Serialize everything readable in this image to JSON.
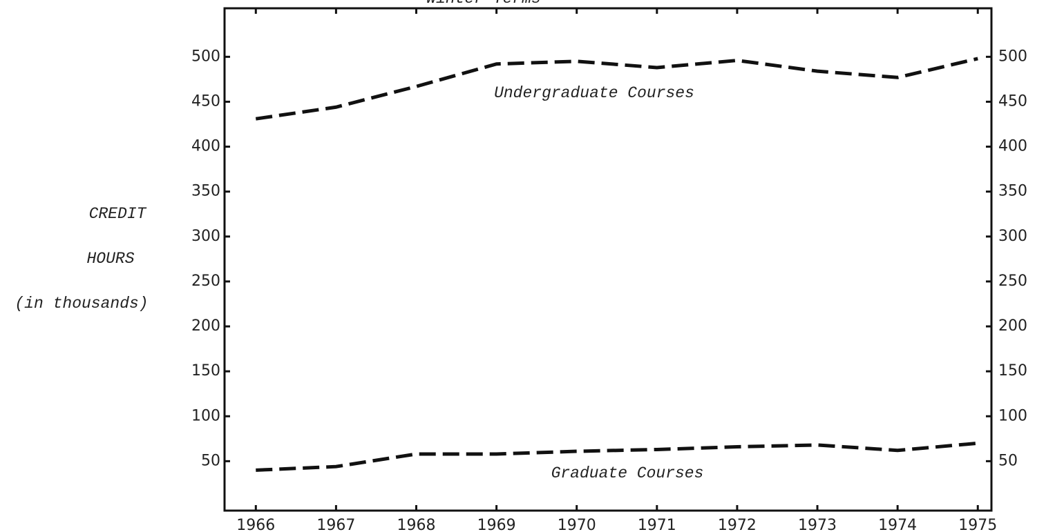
{
  "chart_data": {
    "type": "line",
    "title": "Winter Terms",
    "y_label_lines": [
      "CREDIT",
      "HOURS",
      "(in thousands)"
    ],
    "x": [
      1966,
      1967,
      1968,
      1969,
      1970,
      1971,
      1972,
      1973,
      1974,
      1975
    ],
    "xlim": [
      1965.61,
      1975.17
    ],
    "xticks": [
      1966,
      1967,
      1968,
      1969,
      1970,
      1971,
      1972,
      1973,
      1974,
      1975
    ],
    "ylim": [
      -5,
      554
    ],
    "yticks": [
      50,
      100,
      150,
      200,
      250,
      300,
      350,
      400,
      450,
      500
    ],
    "series": [
      {
        "name": "Undergraduate Courses",
        "color": "#111111",
        "values": [
          431,
          444,
          467,
          492,
          495,
          488,
          496,
          484,
          477,
          498
        ]
      },
      {
        "name": "Graduate Courses",
        "color": "#111111",
        "values": [
          40,
          44,
          58,
          58,
          61,
          63,
          66,
          68,
          62,
          70
        ]
      }
    ]
  }
}
